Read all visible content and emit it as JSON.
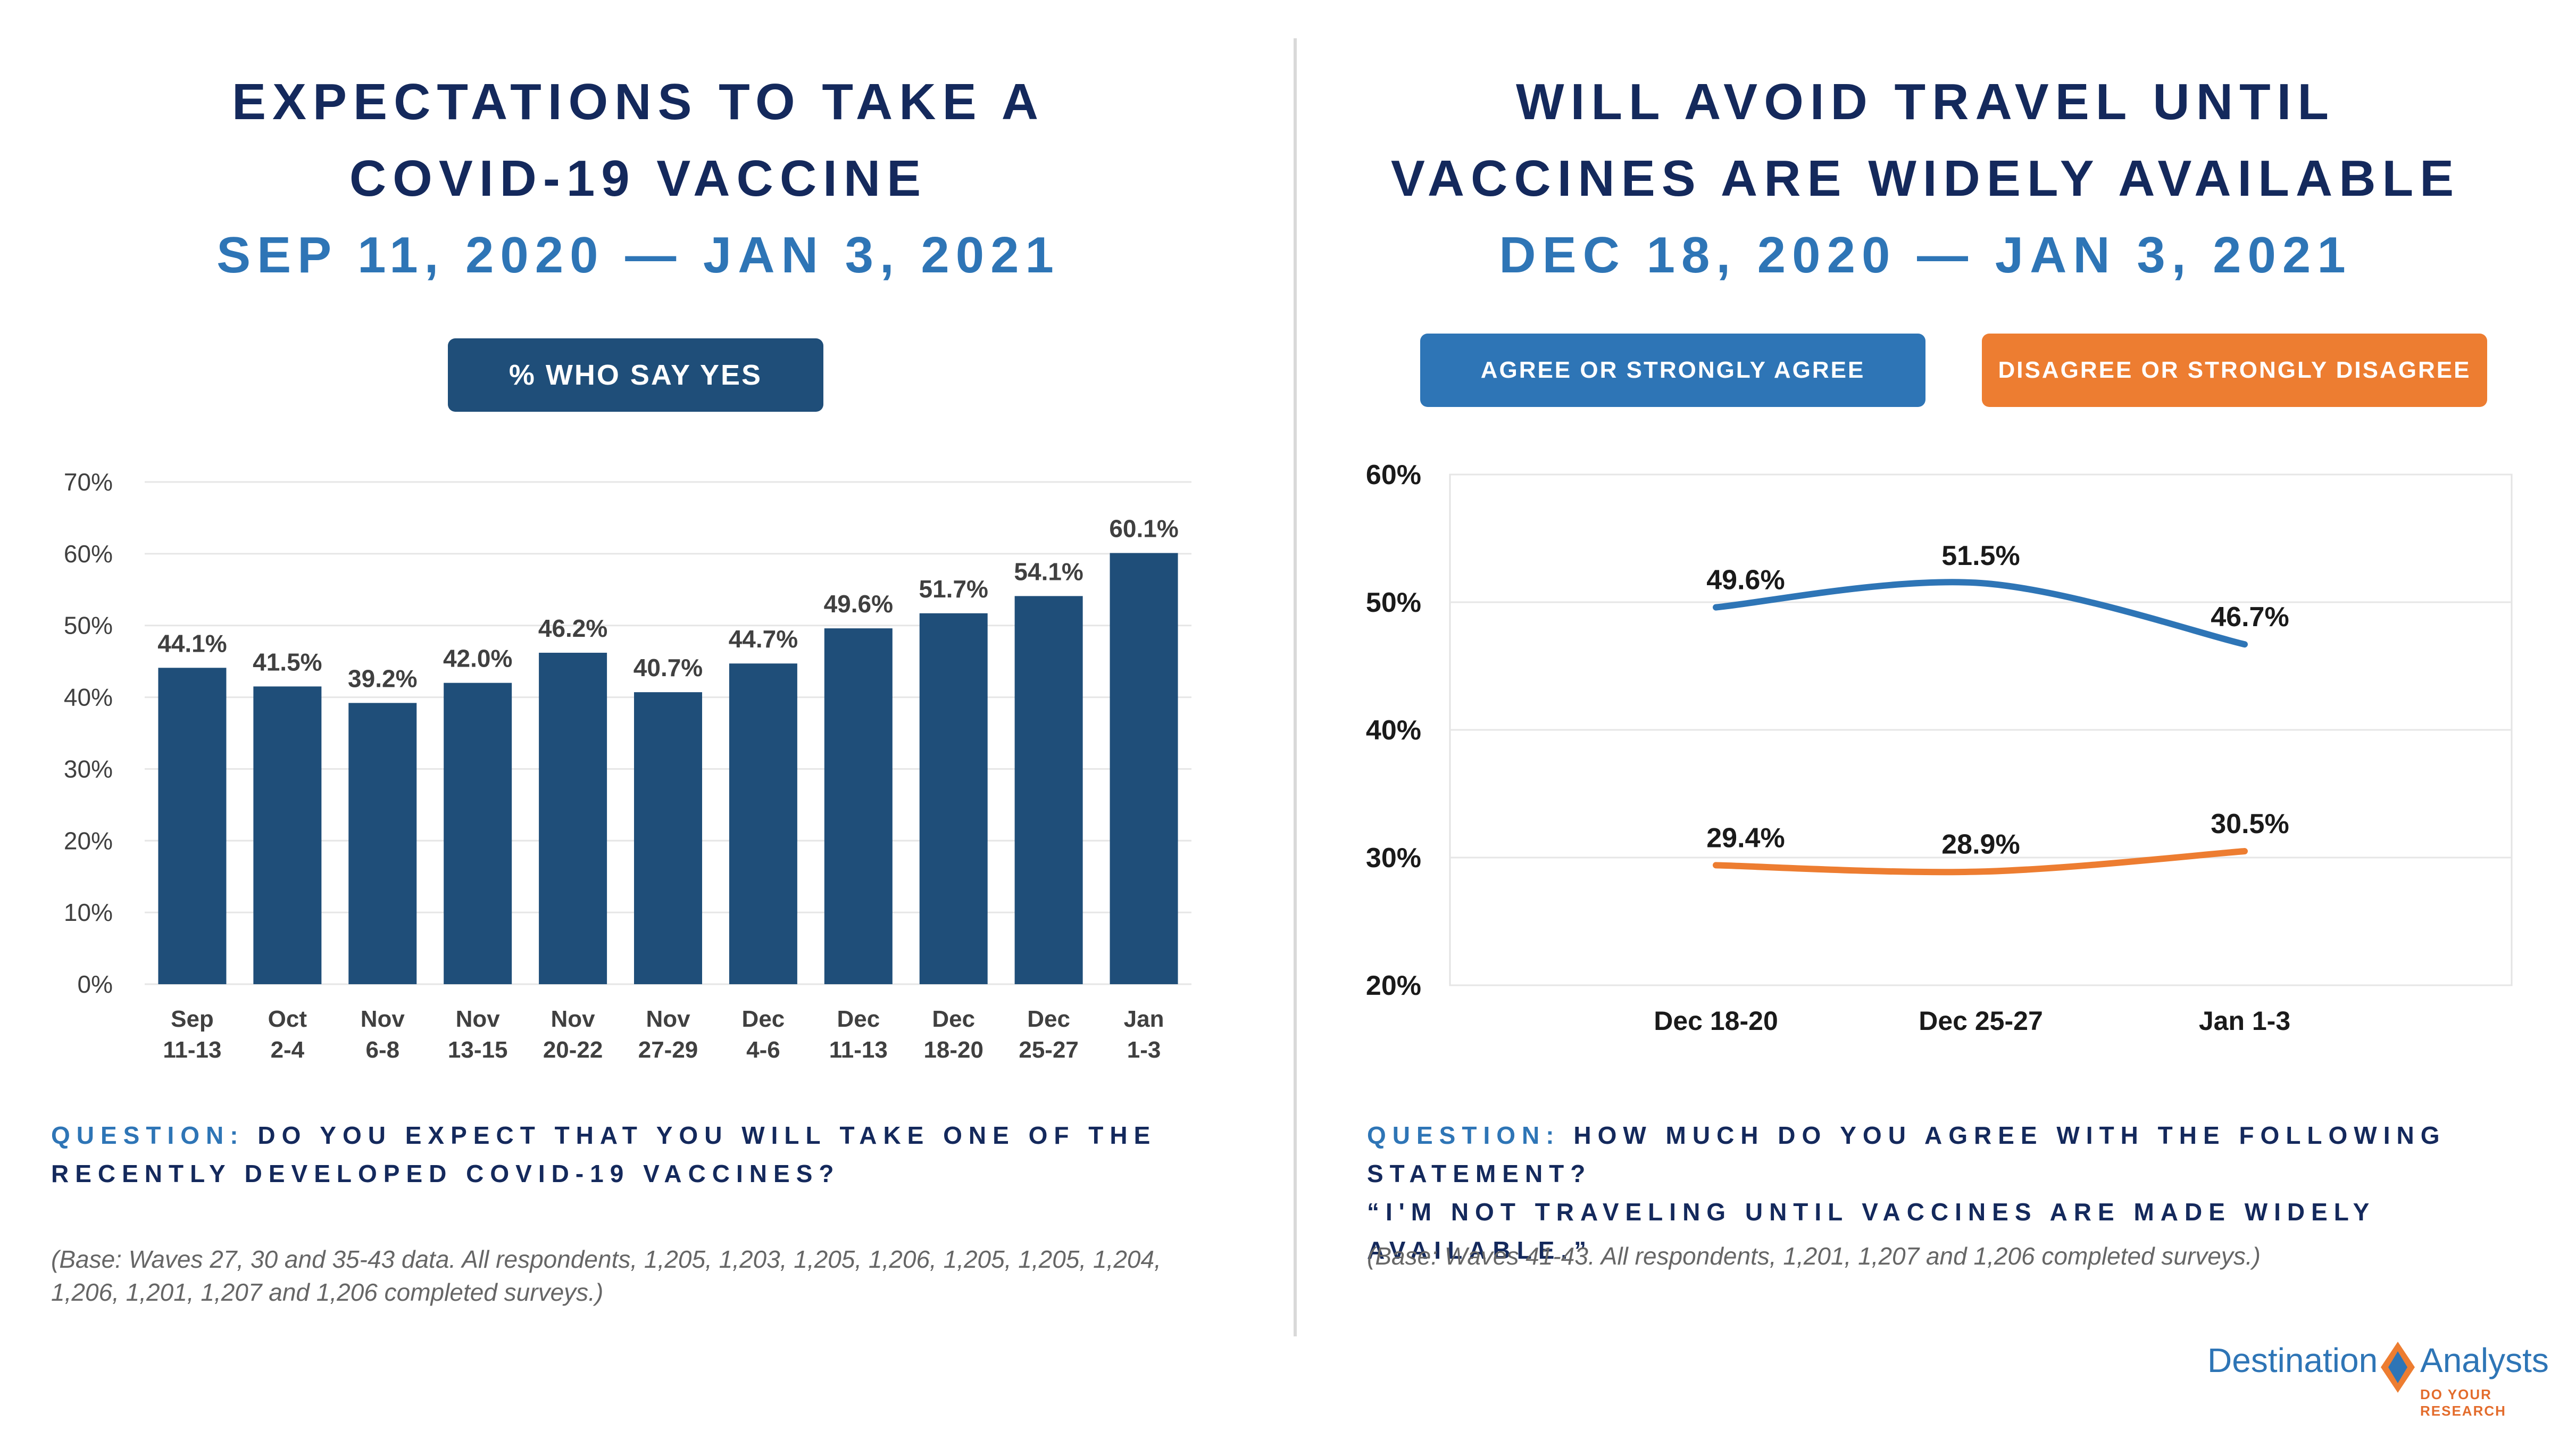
{
  "left_panel": {
    "title_line1": "EXPECTATIONS TO TAKE A",
    "title_line2": "COVID-19 VACCINE",
    "date_range": "SEP 11, 2020 — JAN 3, 2021",
    "badge": "% WHO SAY YES",
    "question_label": "QUESTION:",
    "question_text": "DO YOU EXPECT THAT YOU WILL TAKE ONE OF THE RECENTLY DEVELOPED COVID-19 VACCINES?",
    "base_note": "(Base: Waves 27, 30 and 35-43 data. All respondents, 1,205, 1,203, 1,205, 1,206, 1,205, 1,205, 1,204, 1,206, 1,201, 1,207 and 1,206 completed surveys.)"
  },
  "right_panel": {
    "title_line1": "WILL AVOID TRAVEL UNTIL",
    "title_line2": "VACCINES ARE WIDELY AVAILABLE",
    "date_range": "DEC 18, 2020 — JAN 3, 2021",
    "legend_agree": "AGREE OR STRONGLY AGREE",
    "legend_disagree": "DISAGREE OR STRONGLY DISAGREE",
    "question_label": "QUESTION:",
    "question_line1": "HOW MUCH DO YOU AGREE WITH THE FOLLOWING STATEMENT?",
    "question_line2": "“I'M NOT TRAVELING UNTIL VACCINES ARE MADE WIDELY AVAILABLE.”",
    "base_note": "(Base: Waves 41-43. All respondents, 1,201, 1,207 and 1,206 completed surveys.)"
  },
  "logo": {
    "word1": "Destination",
    "word2": "Analysts",
    "tagline": "DO YOUR RESEARCH"
  },
  "colors": {
    "navy": "#1f4e79",
    "title_navy": "#14295c",
    "accent_blue": "#2e75b6",
    "orange": "#ed7d31"
  },
  "chart_data": [
    {
      "type": "bar",
      "categories": [
        [
          "Sep",
          "11-13"
        ],
        [
          "Oct",
          "2-4"
        ],
        [
          "Nov",
          "6-8"
        ],
        [
          "Nov",
          "13-15"
        ],
        [
          "Nov",
          "20-22"
        ],
        [
          "Nov",
          "27-29"
        ],
        [
          "Dec",
          "4-6"
        ],
        [
          "Dec",
          "11-13"
        ],
        [
          "Dec",
          "18-20"
        ],
        [
          "Dec",
          "25-27"
        ],
        [
          "Jan",
          "1-3"
        ]
      ],
      "values": [
        44.1,
        41.5,
        39.2,
        42.0,
        46.2,
        40.7,
        44.7,
        49.6,
        51.7,
        54.1,
        60.1
      ],
      "value_labels": [
        "44.1%",
        "41.5%",
        "39.2%",
        "42.0%",
        "46.2%",
        "40.7%",
        "44.7%",
        "49.6%",
        "51.7%",
        "54.1%",
        "60.1%"
      ],
      "ylim": [
        0,
        70
      ],
      "yticks": [
        "0%",
        "10%",
        "20%",
        "30%",
        "40%",
        "50%",
        "60%",
        "70%"
      ],
      "grid": true,
      "color": "#1f4e79"
    },
    {
      "type": "line",
      "x": [
        "Dec 18-20",
        "Dec 25-27",
        "Jan 1-3"
      ],
      "series": [
        {
          "name": "AGREE OR STRONGLY AGREE",
          "values": [
            49.6,
            51.5,
            46.7
          ],
          "value_labels": [
            "49.6%",
            "51.5%",
            "46.7%"
          ],
          "color": "#2e75b6"
        },
        {
          "name": "DISAGREE OR STRONGLY DISAGREE",
          "values": [
            29.4,
            28.9,
            30.5
          ],
          "value_labels": [
            "29.4%",
            "28.9%",
            "30.5%"
          ],
          "color": "#ed7d31"
        }
      ],
      "ylim": [
        20,
        60
      ],
      "yticks": [
        "20%",
        "30%",
        "40%",
        "50%",
        "60%"
      ],
      "grid": true,
      "legend": "top"
    }
  ]
}
